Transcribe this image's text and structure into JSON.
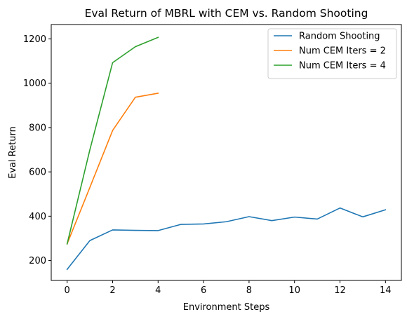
{
  "chart_data": {
    "type": "line",
    "title": "Eval Return of MBRL with CEM vs. Random Shooting",
    "xlabel": "Environment Steps",
    "ylabel": "Eval Return",
    "xlim": [
      -0.7,
      14.7
    ],
    "ylim": [
      110,
      1265
    ],
    "xticks": [
      0,
      2,
      4,
      6,
      8,
      10,
      12,
      14
    ],
    "yticks": [
      200,
      400,
      600,
      800,
      1000,
      1200
    ],
    "grid": false,
    "legend_position": "top-right",
    "series": [
      {
        "name": "Random Shooting",
        "color": "#1f77b4",
        "x": [
          0,
          1,
          2,
          3,
          4,
          5,
          6,
          7,
          8,
          9,
          10,
          11,
          12,
          13,
          14
        ],
        "y": [
          160,
          290,
          338,
          336,
          335,
          363,
          365,
          375,
          398,
          380,
          396,
          387,
          437,
          397,
          429
        ]
      },
      {
        "name": "Num CEM Iters = 2",
        "color": "#ff7f0e",
        "x": [
          0,
          1,
          2,
          3,
          4
        ],
        "y": [
          275,
          530,
          787,
          937,
          955
        ]
      },
      {
        "name": "Num CEM Iters = 4",
        "color": "#2ca02c",
        "x": [
          0,
          1,
          2,
          3,
          4
        ],
        "y": [
          275,
          700,
          1093,
          1165,
          1207
        ]
      }
    ]
  }
}
